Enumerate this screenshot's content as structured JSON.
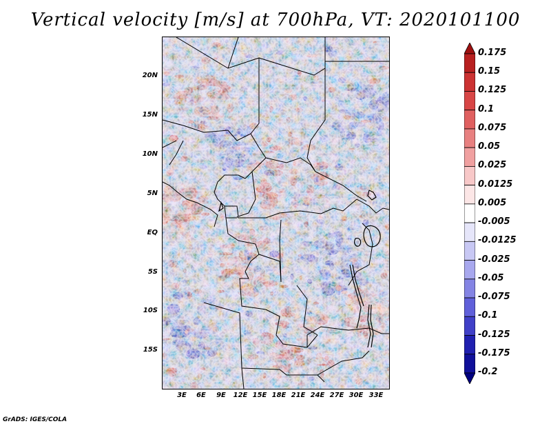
{
  "title": "Vertical velocity [m/s] at 700hPa, VT: 2020101100",
  "credit": "GrADS: IGES/COLA",
  "map": {
    "region": "Central Africa",
    "variable": "Vertical velocity",
    "units": "m/s",
    "level": "700hPa",
    "valid_time": "2020101100",
    "lat_labels": [
      "20N",
      "15N",
      "10N",
      "5N",
      "EQ",
      "5S",
      "10S",
      "15S"
    ],
    "lon_labels": [
      "3E",
      "6E",
      "9E",
      "12E",
      "15E",
      "18E",
      "21E",
      "24E",
      "27E",
      "30E",
      "33E"
    ]
  },
  "colorbar": {
    "levels": [
      "0.175",
      "0.15",
      "0.125",
      "0.1",
      "0.075",
      "0.05",
      "0.025",
      "0.0125",
      "0.005",
      "-0.005",
      "-0.0125",
      "-0.025",
      "-0.05",
      "-0.075",
      "-0.1",
      "-0.125",
      "-0.175",
      "-0.2"
    ],
    "colors": [
      "#9e1010",
      "#b82020",
      "#cc3232",
      "#d84646",
      "#e06060",
      "#e88080",
      "#f0a0a0",
      "#f8c8c8",
      "#fce6e6",
      "#ffffff",
      "#e6e6fa",
      "#c8c8f4",
      "#a8a8ee",
      "#8484e4",
      "#6060da",
      "#4040c8",
      "#2020b0",
      "#10109a",
      "#000080"
    ]
  }
}
